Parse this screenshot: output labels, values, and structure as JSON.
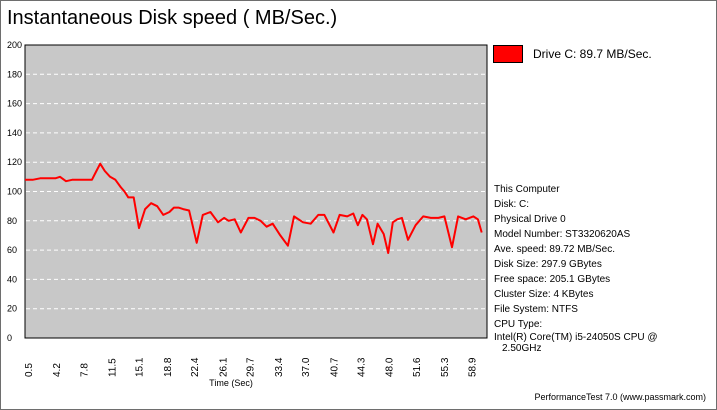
{
  "colors": {
    "series": "#ff0000",
    "plot_background": "#c8c8c8",
    "grid": "#ffffff"
  },
  "footer": "PerformanceTest 7.0 (www.passmark.com)",
  "info": {
    "computer": "This Computer",
    "disk": "Disk: C:",
    "physical_drive": "Physical Drive 0",
    "model": "Model Number: ST3320620AS",
    "ave_speed": "Ave. speed: 89.72 MB/Sec.",
    "disk_size": "Disk Size: 297.9 GBytes",
    "free_space": "Free space: 205.1 GBytes",
    "cluster_size": "Cluster Size: 4 KBytes",
    "file_system": "File System: NTFS",
    "cpu_type_label": "CPU Type:",
    "cpu_type_value_1": "Intel(R) Core(TM) i5-24050S CPU @",
    "cpu_type_value_2": "2.50GHz"
  },
  "chart_data": {
    "type": "line",
    "title": "Instantaneous Disk speed ( MB/Sec.)",
    "xlabel": "Time (Sec)",
    "ylabel": "",
    "xlim": [
      0,
      60.8
    ],
    "ylim": [
      0,
      200
    ],
    "yticks": [
      "0",
      "20",
      "40",
      "60",
      "80",
      "100",
      "120",
      "140",
      "160",
      "180",
      "200"
    ],
    "xticks": [
      "0.5",
      "4.2",
      "7.8",
      "11.5",
      "15.1",
      "18.8",
      "22.4",
      "26.1",
      "29.7",
      "33.4",
      "37.0",
      "40.7",
      "44.3",
      "48.0",
      "51.6",
      "55.3",
      "58.9"
    ],
    "legend_position": "top-right",
    "grid": true,
    "series": [
      {
        "name": "Drive C: 89.7 MB/Sec.",
        "x": [
          0,
          1.0,
          2.0,
          3.0,
          4.0,
          4.6,
          5.4,
          6.2,
          7.0,
          8.0,
          8.8,
          9.4,
          9.9,
          10.5,
          11.2,
          11.9,
          12.6,
          13.1,
          13.6,
          14.3,
          15.0,
          15.8,
          16.6,
          17.4,
          18.2,
          19.0,
          19.6,
          20.2,
          20.8,
          21.6,
          22.6,
          23.4,
          24.4,
          25.4,
          26.2,
          26.8,
          27.6,
          28.4,
          29.4,
          30.2,
          31.0,
          31.8,
          32.6,
          33.6,
          34.6,
          35.4,
          36.6,
          37.6,
          38.6,
          39.4,
          40.6,
          41.4,
          42.4,
          43.2,
          43.8,
          44.4,
          45.0,
          45.8,
          46.4,
          47.2,
          47.8,
          48.4,
          49.0,
          49.6,
          50.4,
          51.4,
          52.4,
          53.4,
          54.4,
          55.2,
          56.2,
          57.0,
          58.0,
          59.0,
          59.6,
          60.1
        ],
        "y": [
          108,
          108,
          109,
          109,
          109,
          110,
          107,
          108,
          108,
          108,
          108,
          114,
          119,
          114,
          110,
          108,
          103,
          100,
          96,
          96,
          75,
          88,
          92,
          90,
          84,
          86,
          89,
          89,
          88,
          87,
          65,
          84,
          86,
          79,
          82,
          80,
          81,
          72,
          82,
          82,
          80,
          76,
          78,
          70,
          63,
          83,
          79,
          78,
          84,
          84,
          72,
          84,
          83,
          85,
          77,
          84,
          81,
          64,
          78,
          71,
          58,
          79,
          81,
          82,
          67,
          77,
          83,
          82,
          82,
          83,
          62,
          83,
          81,
          83,
          81,
          72
        ]
      }
    ]
  }
}
